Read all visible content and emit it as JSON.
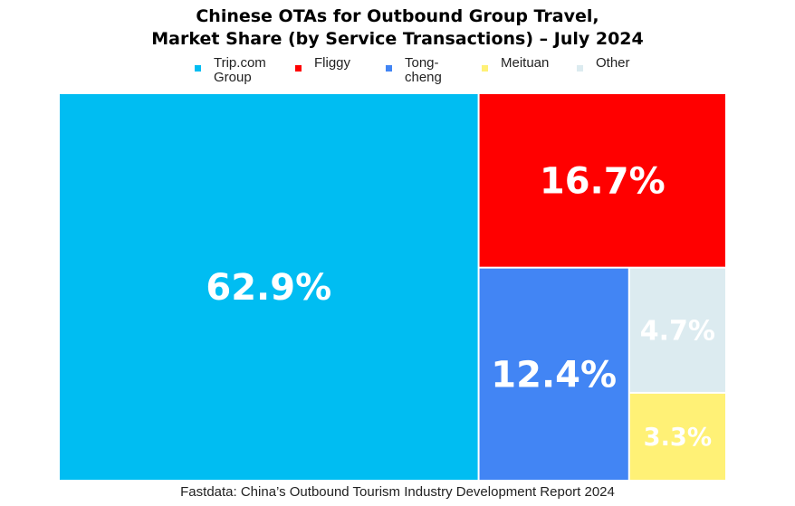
{
  "chart_data": {
    "type": "treemap",
    "title": "Chinese OTAs for Outbound Group Travel,",
    "subtitle": "Market Share (by Service Transactions) – July 2024",
    "legend_position": "top",
    "items": [
      {
        "name": "Trip.com Group",
        "legend_lines": [
          "Trip.com",
          "Group"
        ],
        "value": 62.9,
        "label": "62.9%",
        "color": "#00BDF2"
      },
      {
        "name": "Fliggy",
        "legend_lines": [
          "Fliggy"
        ],
        "value": 16.7,
        "label": "16.7%",
        "color": "#FF0000"
      },
      {
        "name": "Tong-cheng",
        "legend_lines": [
          "Tong-",
          "cheng"
        ],
        "value": 12.4,
        "label": "12.4%",
        "color": "#4285F4"
      },
      {
        "name": "Meituan",
        "legend_lines": [
          "Meituan"
        ],
        "value": 3.3,
        "label": "3.3%",
        "color": "#FFF176"
      },
      {
        "name": "Other",
        "legend_lines": [
          "Other"
        ],
        "value": 4.7,
        "label": "4.7%",
        "color": "#DCEBF0"
      }
    ],
    "source": "Fastdata: China’s Outbound Tourism Industry Development Report 2024"
  }
}
